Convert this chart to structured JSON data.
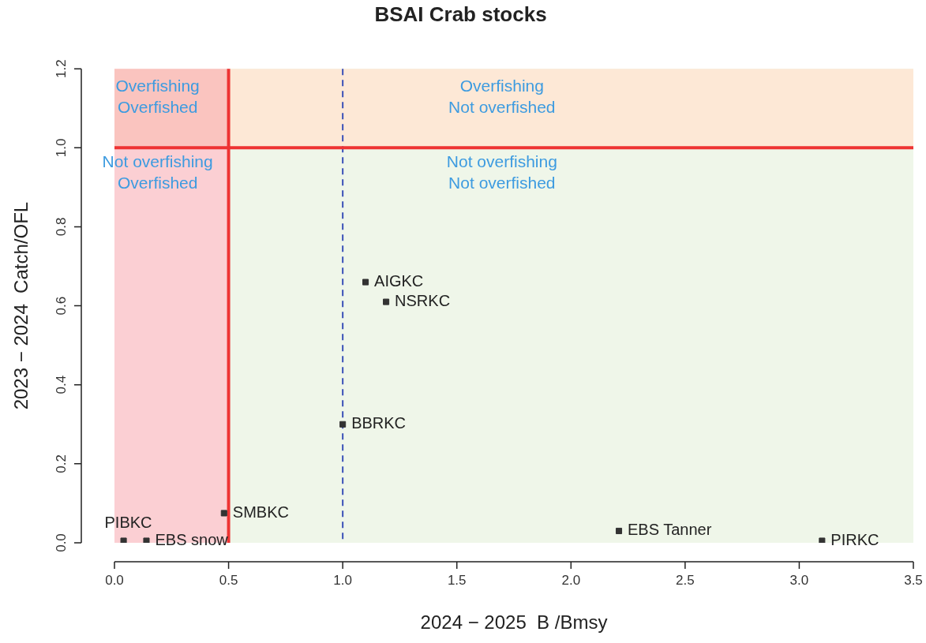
{
  "chart_data": {
    "type": "scatter",
    "title": "BSAI Crab stocks",
    "xlabel": "2024 − 2025  B /Bmsy",
    "ylabel": "2023 − 2024  Catch/OFL",
    "xlim": [
      0,
      3.5
    ],
    "ylim": [
      0,
      1.2
    ],
    "xticks": [
      {
        "value": 0,
        "label": "0.0"
      },
      {
        "value": 0.5,
        "label": "0.5"
      },
      {
        "value": 1,
        "label": "1.0"
      },
      {
        "value": 1.5,
        "label": "1.5"
      },
      {
        "value": 2,
        "label": "2.0"
      },
      {
        "value": 2.5,
        "label": "2.5"
      },
      {
        "value": 3,
        "label": "3.0"
      },
      {
        "value": 3.5,
        "label": "3.5"
      }
    ],
    "yticks": [
      {
        "value": 0,
        "label": "0.0"
      },
      {
        "value": 0.2,
        "label": "0.2"
      },
      {
        "value": 0.4,
        "label": "0.4"
      },
      {
        "value": 0.6,
        "label": "0.6"
      },
      {
        "value": 0.8,
        "label": "0.8"
      },
      {
        "value": 1,
        "label": "1.0"
      },
      {
        "value": 1.2,
        "label": "1.2"
      }
    ],
    "grid": false,
    "legend": false,
    "marker": "square",
    "series": [
      {
        "name": "PIBKC",
        "color": "#333333",
        "x": [
          0.04
        ],
        "values": [
          0.005
        ]
      },
      {
        "name": "EBS snow",
        "color": "#333333",
        "x": [
          0.14
        ],
        "values": [
          0.005
        ]
      },
      {
        "name": "SMBKC",
        "color": "#333333",
        "x": [
          0.48
        ],
        "values": [
          0.075
        ]
      },
      {
        "name": "BBRKC",
        "color": "#333333",
        "x": [
          1.0
        ],
        "values": [
          0.3
        ]
      },
      {
        "name": "AIGKC",
        "color": "#333333",
        "x": [
          1.1
        ],
        "values": [
          0.66
        ]
      },
      {
        "name": "NSRKC",
        "color": "#333333",
        "x": [
          1.19
        ],
        "values": [
          0.61
        ]
      },
      {
        "name": "EBS Tanner",
        "color": "#333333",
        "x": [
          2.21
        ],
        "values": [
          0.03
        ]
      },
      {
        "name": "PIRKC",
        "color": "#333333",
        "x": [
          3.1
        ],
        "values": [
          0.005
        ]
      }
    ],
    "bands": [
      {
        "axis": "x",
        "from": 0.5,
        "to": 3.5,
        "color": "#dfeed4"
      },
      {
        "axis": "y",
        "from": 1,
        "to": 1.2,
        "color": "#fde8d6"
      },
      {
        "axis": "x",
        "from": 0,
        "to": 0.5,
        "color": "#f8a0a8"
      }
    ],
    "ref_lines": [
      {
        "axis": "x",
        "value": 1,
        "color": "#3a50b8",
        "line_style": "dashed"
      },
      {
        "axis": "y",
        "value": 1,
        "color": "#ee3333",
        "line_style": "solid"
      },
      {
        "axis": "x",
        "value": 0.5,
        "color": "#ee3333",
        "line_style": "solid"
      }
    ],
    "annotations": [
      "Overfishing\nOverfished",
      "Overfishing\nNot overfished",
      "Not overfishing\nOverfished",
      "Not overfishing\nNot overfished"
    ]
  }
}
